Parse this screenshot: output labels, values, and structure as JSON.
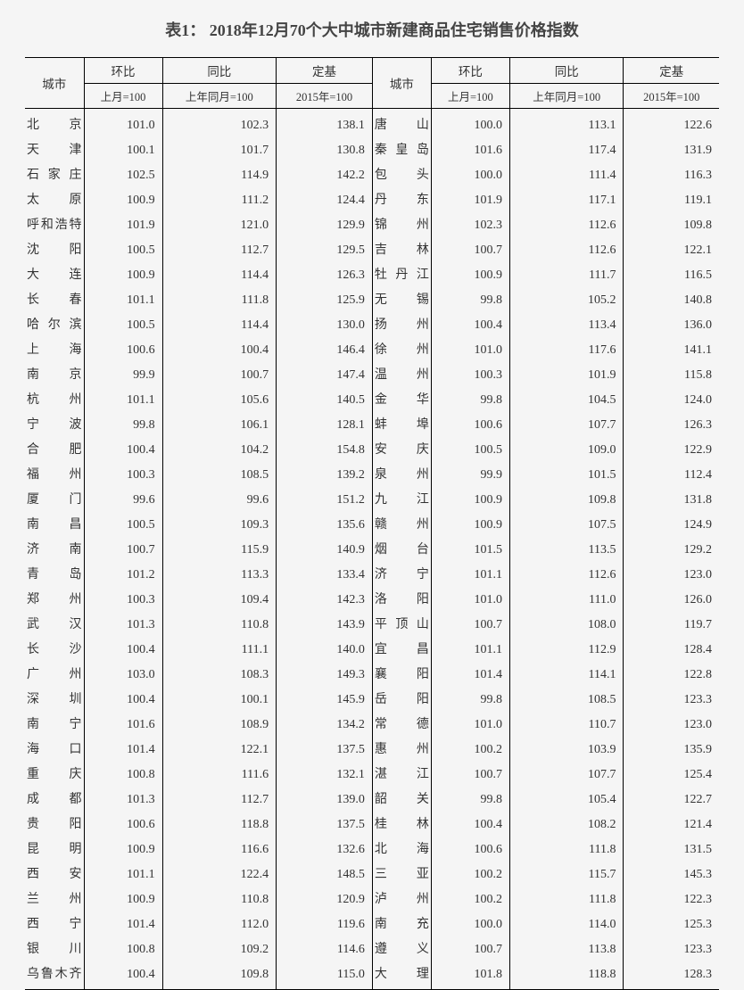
{
  "title": "表1：  2018年12月70个大中城市新建商品住宅销售价格指数",
  "header": {
    "city": "城市",
    "mom": "环比",
    "yoy": "同比",
    "base": "定基",
    "mom_sub": "上月=100",
    "yoy_sub": "上年同月=100",
    "base_sub": "2015年=100"
  },
  "rows": [
    {
      "c1": "北京",
      "m1": "101.0",
      "y1": "102.3",
      "b1": "138.1",
      "c2": "唐山",
      "m2": "100.0",
      "y2": "113.1",
      "b2": "122.6"
    },
    {
      "c1": "天津",
      "m1": "100.1",
      "y1": "101.7",
      "b1": "130.8",
      "c2": "秦皇岛",
      "m2": "101.6",
      "y2": "117.4",
      "b2": "131.9"
    },
    {
      "c1": "石家庄",
      "m1": "102.5",
      "y1": "114.9",
      "b1": "142.2",
      "c2": "包头",
      "m2": "100.0",
      "y2": "111.4",
      "b2": "116.3"
    },
    {
      "c1": "太原",
      "m1": "100.9",
      "y1": "111.2",
      "b1": "124.4",
      "c2": "丹东",
      "m2": "101.9",
      "y2": "117.1",
      "b2": "119.1"
    },
    {
      "c1": "呼和浩特",
      "m1": "101.9",
      "y1": "121.0",
      "b1": "129.9",
      "c2": "锦州",
      "m2": "102.3",
      "y2": "112.6",
      "b2": "109.8"
    },
    {
      "c1": "沈阳",
      "m1": "100.5",
      "y1": "112.7",
      "b1": "129.5",
      "c2": "吉林",
      "m2": "100.7",
      "y2": "112.6",
      "b2": "122.1"
    },
    {
      "c1": "大连",
      "m1": "100.9",
      "y1": "114.4",
      "b1": "126.3",
      "c2": "牡丹江",
      "m2": "100.9",
      "y2": "111.7",
      "b2": "116.5"
    },
    {
      "c1": "长春",
      "m1": "101.1",
      "y1": "111.8",
      "b1": "125.9",
      "c2": "无锡",
      "m2": "99.8",
      "y2": "105.2",
      "b2": "140.8"
    },
    {
      "c1": "哈尔滨",
      "m1": "100.5",
      "y1": "114.4",
      "b1": "130.0",
      "c2": "扬州",
      "m2": "100.4",
      "y2": "113.4",
      "b2": "136.0"
    },
    {
      "c1": "上海",
      "m1": "100.6",
      "y1": "100.4",
      "b1": "146.4",
      "c2": "徐州",
      "m2": "101.0",
      "y2": "117.6",
      "b2": "141.1"
    },
    {
      "c1": "南京",
      "m1": "99.9",
      "y1": "100.7",
      "b1": "147.4",
      "c2": "温州",
      "m2": "100.3",
      "y2": "101.9",
      "b2": "115.8"
    },
    {
      "c1": "杭州",
      "m1": "101.1",
      "y1": "105.6",
      "b1": "140.5",
      "c2": "金华",
      "m2": "99.8",
      "y2": "104.5",
      "b2": "124.0"
    },
    {
      "c1": "宁波",
      "m1": "99.8",
      "y1": "106.1",
      "b1": "128.1",
      "c2": "蚌埠",
      "m2": "100.6",
      "y2": "107.7",
      "b2": "126.3"
    },
    {
      "c1": "合肥",
      "m1": "100.4",
      "y1": "104.2",
      "b1": "154.8",
      "c2": "安庆",
      "m2": "100.5",
      "y2": "109.0",
      "b2": "122.9"
    },
    {
      "c1": "福州",
      "m1": "100.3",
      "y1": "108.5",
      "b1": "139.2",
      "c2": "泉州",
      "m2": "99.9",
      "y2": "101.5",
      "b2": "112.4"
    },
    {
      "c1": "厦门",
      "m1": "99.6",
      "y1": "99.6",
      "b1": "151.2",
      "c2": "九江",
      "m2": "100.9",
      "y2": "109.8",
      "b2": "131.8"
    },
    {
      "c1": "南昌",
      "m1": "100.5",
      "y1": "109.3",
      "b1": "135.6",
      "c2": "赣州",
      "m2": "100.9",
      "y2": "107.5",
      "b2": "124.9"
    },
    {
      "c1": "济南",
      "m1": "100.7",
      "y1": "115.9",
      "b1": "140.9",
      "c2": "烟台",
      "m2": "101.5",
      "y2": "113.5",
      "b2": "129.2"
    },
    {
      "c1": "青岛",
      "m1": "101.2",
      "y1": "113.3",
      "b1": "133.4",
      "c2": "济宁",
      "m2": "101.1",
      "y2": "112.6",
      "b2": "123.0"
    },
    {
      "c1": "郑州",
      "m1": "100.3",
      "y1": "109.4",
      "b1": "142.3",
      "c2": "洛阳",
      "m2": "101.0",
      "y2": "111.0",
      "b2": "126.0"
    },
    {
      "c1": "武汉",
      "m1": "101.3",
      "y1": "110.8",
      "b1": "143.9",
      "c2": "平顶山",
      "m2": "100.7",
      "y2": "108.0",
      "b2": "119.7"
    },
    {
      "c1": "长沙",
      "m1": "100.4",
      "y1": "111.1",
      "b1": "140.0",
      "c2": "宜昌",
      "m2": "101.1",
      "y2": "112.9",
      "b2": "128.4"
    },
    {
      "c1": "广州",
      "m1": "103.0",
      "y1": "108.3",
      "b1": "149.3",
      "c2": "襄阳",
      "m2": "101.4",
      "y2": "114.1",
      "b2": "122.8"
    },
    {
      "c1": "深圳",
      "m1": "100.4",
      "y1": "100.1",
      "b1": "145.9",
      "c2": "岳阳",
      "m2": "99.8",
      "y2": "108.5",
      "b2": "123.3"
    },
    {
      "c1": "南宁",
      "m1": "101.6",
      "y1": "108.9",
      "b1": "134.2",
      "c2": "常德",
      "m2": "101.0",
      "y2": "110.7",
      "b2": "123.0"
    },
    {
      "c1": "海口",
      "m1": "101.4",
      "y1": "122.1",
      "b1": "137.5",
      "c2": "惠州",
      "m2": "100.2",
      "y2": "103.9",
      "b2": "135.9"
    },
    {
      "c1": "重庆",
      "m1": "100.8",
      "y1": "111.6",
      "b1": "132.1",
      "c2": "湛江",
      "m2": "100.7",
      "y2": "107.7",
      "b2": "125.4"
    },
    {
      "c1": "成都",
      "m1": "101.3",
      "y1": "112.7",
      "b1": "139.0",
      "c2": "韶关",
      "m2": "99.8",
      "y2": "105.4",
      "b2": "122.7"
    },
    {
      "c1": "贵阳",
      "m1": "100.6",
      "y1": "118.8",
      "b1": "137.5",
      "c2": "桂林",
      "m2": "100.4",
      "y2": "108.2",
      "b2": "121.4"
    },
    {
      "c1": "昆明",
      "m1": "100.9",
      "y1": "116.6",
      "b1": "132.6",
      "c2": "北海",
      "m2": "100.6",
      "y2": "111.8",
      "b2": "131.5"
    },
    {
      "c1": "西安",
      "m1": "101.1",
      "y1": "122.4",
      "b1": "148.5",
      "c2": "三亚",
      "m2": "100.2",
      "y2": "115.7",
      "b2": "145.3"
    },
    {
      "c1": "兰州",
      "m1": "100.9",
      "y1": "110.8",
      "b1": "120.9",
      "c2": "泸州",
      "m2": "100.2",
      "y2": "111.8",
      "b2": "122.3"
    },
    {
      "c1": "西宁",
      "m1": "101.4",
      "y1": "112.0",
      "b1": "119.6",
      "c2": "南充",
      "m2": "100.0",
      "y2": "114.0",
      "b2": "125.3"
    },
    {
      "c1": "银川",
      "m1": "100.8",
      "y1": "109.2",
      "b1": "114.6",
      "c2": "遵义",
      "m2": "100.7",
      "y2": "113.8",
      "b2": "123.3"
    },
    {
      "c1": "乌鲁木齐",
      "m1": "100.4",
      "y1": "109.8",
      "b1": "115.0",
      "c2": "大理",
      "m2": "101.8",
      "y2": "118.8",
      "b2": "128.3"
    }
  ]
}
